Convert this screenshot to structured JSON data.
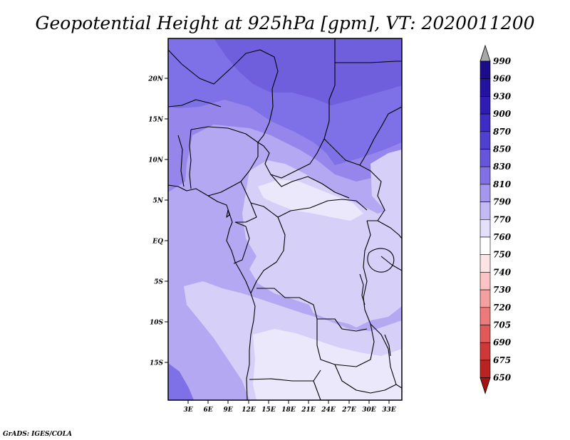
{
  "title": "Geopotential Height at 925hPa [gpm], VT: 2020011200",
  "credit": "GrADS: IGES/COLA",
  "map": {
    "lat_labels": [
      "20N",
      "15N",
      "10N",
      "5N",
      "EQ",
      "5S",
      "10S",
      "15S"
    ],
    "lon_labels": [
      "3E",
      "6E",
      "9E",
      "12E",
      "15E",
      "18E",
      "21E",
      "24E",
      "27E",
      "30E",
      "33E"
    ]
  },
  "colorbar": {
    "levels": [
      "990",
      "960",
      "930",
      "900",
      "870",
      "850",
      "830",
      "810",
      "790",
      "770",
      "760",
      "750",
      "740",
      "730",
      "720",
      "705",
      "690",
      "675",
      "650"
    ],
    "colors": [
      "#1b0c8c",
      "#2412a0",
      "#2f1cb4",
      "#3d2cc6",
      "#4f40d2",
      "#6756dc",
      "#8270e6",
      "#a596ee",
      "#c3b9f4",
      "#e4e0fa",
      "#ffffff",
      "#fde4e4",
      "#fbc3c3",
      "#f5a0a0",
      "#ec7a7a",
      "#e05858",
      "#cf3838",
      "#bb2222",
      "#a51212"
    ],
    "top_arrow_color": "#a8a8a8",
    "bottom_arrow_color": "#a51212"
  },
  "fill_colors": {
    "c870": "#6f5fdc",
    "c850": "#7e70e6",
    "c830": "#9686ec",
    "c810": "#b4a8f2",
    "c790": "#d6d0f8",
    "c770": "#ebe8fc"
  }
}
